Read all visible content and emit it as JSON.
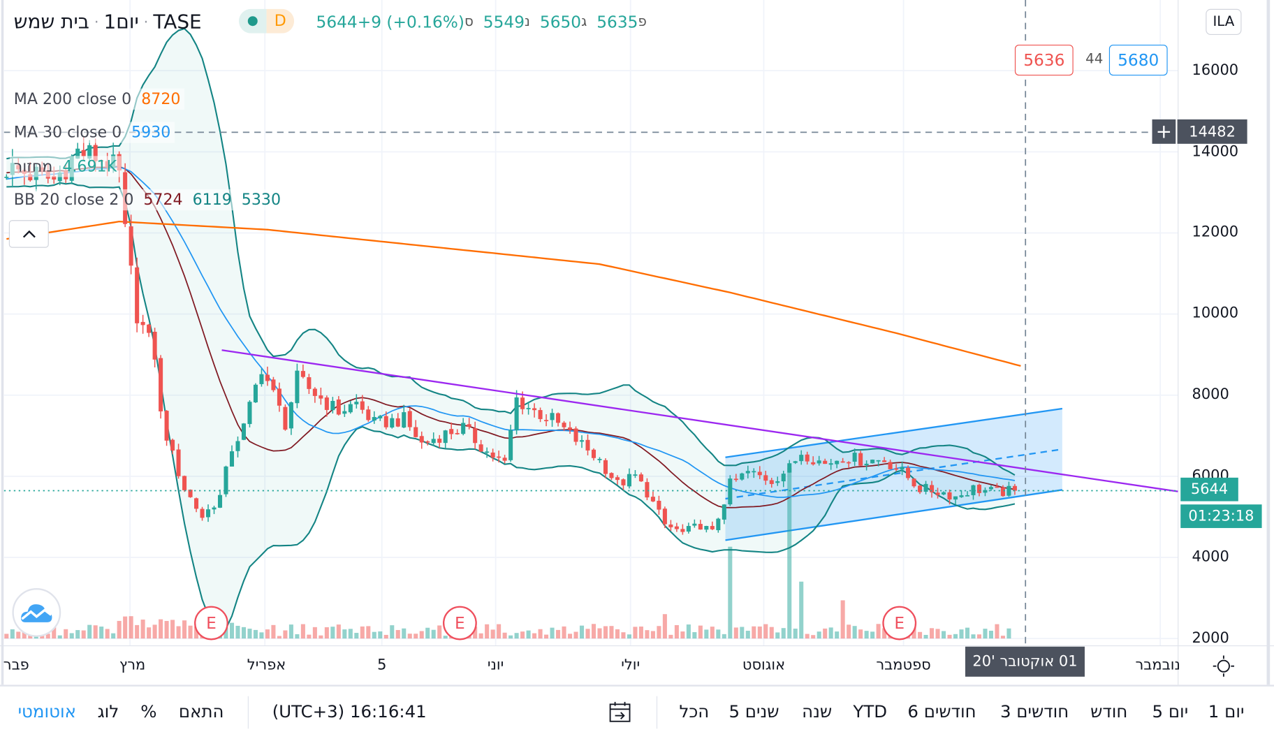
{
  "header": {
    "symbol_name": "בית שמש",
    "interval": "יום1",
    "exchange": "TASE",
    "market_status_letter": "D",
    "ohlc": {
      "open_label": "פ",
      "open": "5635",
      "high_label": "ג",
      "high": "5650",
      "low_label": "נ",
      "low": "5549",
      "close_label": "ס",
      "close": "5644",
      "change": "+9 (+0.16%)"
    }
  },
  "legend": {
    "ma200": {
      "label": "MA 200 close 0",
      "value": "8720"
    },
    "ma30": {
      "label": "MA 30 close 0",
      "value": "5930"
    },
    "volume": {
      "label": "מחזור",
      "value": "4.691K"
    },
    "bb": {
      "label": "BB 20 close 2 0",
      "basis": "5724",
      "upper": "6119",
      "lower": "5330"
    }
  },
  "order_panel": {
    "sell": "5636",
    "spread": "44",
    "buy": "5680"
  },
  "currency": "ILA",
  "price_axis": {
    "ticks": [
      "16000",
      "14000",
      "12000",
      "10000",
      "8000",
      "6000",
      "4000",
      "2000"
    ],
    "crosshair_price": "14482",
    "last_price": "5644",
    "countdown": "01:23:18"
  },
  "time_axis": {
    "labels": [
      "פבר",
      "מרץ",
      "אפריל",
      "5",
      "יוני",
      "יולי",
      "אוגוסט",
      "ספטמבר",
      "נובמבר"
    ],
    "crosshair_date": "01 אוקטובר '20"
  },
  "earnings_marker": "E",
  "bottom_bar": {
    "ranges": [
      "1 יום",
      "5 יום",
      "חודש",
      "3 חודשים",
      "6 חודשים",
      "YTD",
      "שנה",
      "5 שנים",
      "הכל"
    ],
    "clock": "(UTC+3) 16:16:41",
    "fit": "התאם",
    "percent": "%",
    "log": "לוג",
    "auto": "אוטומטי"
  },
  "colors": {
    "up": "#26a69a",
    "down": "#ef5350",
    "ma200": "#ff6d00",
    "ma30": "#2196f3",
    "bb_basis": "#801922",
    "bb_band": "#138484",
    "trendline": "#9c27f0",
    "channel": "#2196f3"
  },
  "chart_data": {
    "type": "candlestick",
    "price_range": [
      2000,
      16000
    ],
    "close_keypoints": [
      [
        -30,
        13000
      ],
      [
        -10,
        13400
      ],
      [
        0,
        13600
      ],
      [
        8,
        13300
      ],
      [
        12,
        14000
      ],
      [
        17,
        13800
      ],
      [
        19,
        13400
      ],
      [
        20,
        12000
      ],
      [
        22,
        10000
      ],
      [
        25,
        9000
      ],
      [
        26,
        7500
      ],
      [
        28,
        6500
      ],
      [
        30,
        5700
      ],
      [
        33,
        5000
      ],
      [
        36,
        5500
      ],
      [
        38,
        6700
      ],
      [
        40,
        7200
      ],
      [
        43,
        8700
      ],
      [
        45,
        8000
      ],
      [
        47,
        7300
      ],
      [
        49,
        8400
      ],
      [
        54,
        7800
      ],
      [
        56,
        7600
      ],
      [
        59,
        7800
      ],
      [
        62,
        7300
      ],
      [
        67,
        7400
      ],
      [
        70,
        6800
      ],
      [
        73,
        7000
      ],
      [
        77,
        7200
      ],
      [
        81,
        6600
      ],
      [
        84,
        6300
      ],
      [
        86,
        7900
      ],
      [
        89,
        7600
      ],
      [
        92,
        7400
      ],
      [
        96,
        6900
      ],
      [
        100,
        6400
      ],
      [
        103,
        5800
      ],
      [
        106,
        6000
      ],
      [
        108,
        5600
      ],
      [
        111,
        4800
      ],
      [
        114,
        4600
      ],
      [
        117,
        4800
      ],
      [
        119,
        4600
      ],
      [
        122,
        5800
      ],
      [
        125,
        6100
      ],
      [
        129,
        5900
      ],
      [
        132,
        6200
      ],
      [
        134,
        6600
      ],
      [
        138,
        6300
      ],
      [
        141,
        6500
      ],
      [
        144,
        6400
      ],
      [
        148,
        6400
      ],
      [
        151,
        6100
      ],
      [
        154,
        5700
      ],
      [
        158,
        5600
      ],
      [
        160,
        5500
      ],
      [
        163,
        5700
      ],
      [
        167,
        5600
      ],
      [
        170,
        5644
      ]
    ],
    "ma200_keypoints": [
      [
        0,
        11850
      ],
      [
        19,
        12280
      ],
      [
        44,
        12080
      ],
      [
        67,
        11730
      ],
      [
        100,
        11230
      ],
      [
        122,
        10530
      ],
      [
        150,
        9530
      ],
      [
        171,
        8720
      ]
    ],
    "volume_spikes": [
      [
        111,
        300
      ],
      [
        122,
        1130
      ],
      [
        132,
        2100
      ],
      [
        134,
        700
      ],
      [
        141,
        470
      ]
    ],
    "trendline": [
      [
        36.3,
        9110
      ],
      [
        197.5,
        5625
      ]
    ],
    "channel": {
      "start_day": 121.2,
      "end_day": 178,
      "lower": [
        4424,
        5665
      ],
      "upper": [
        6467,
        7668
      ]
    },
    "earnings_days": [
      34.4,
      76.3,
      150.4
    ],
    "crosshair": {
      "day": 171.8,
      "price": 14482
    }
  }
}
